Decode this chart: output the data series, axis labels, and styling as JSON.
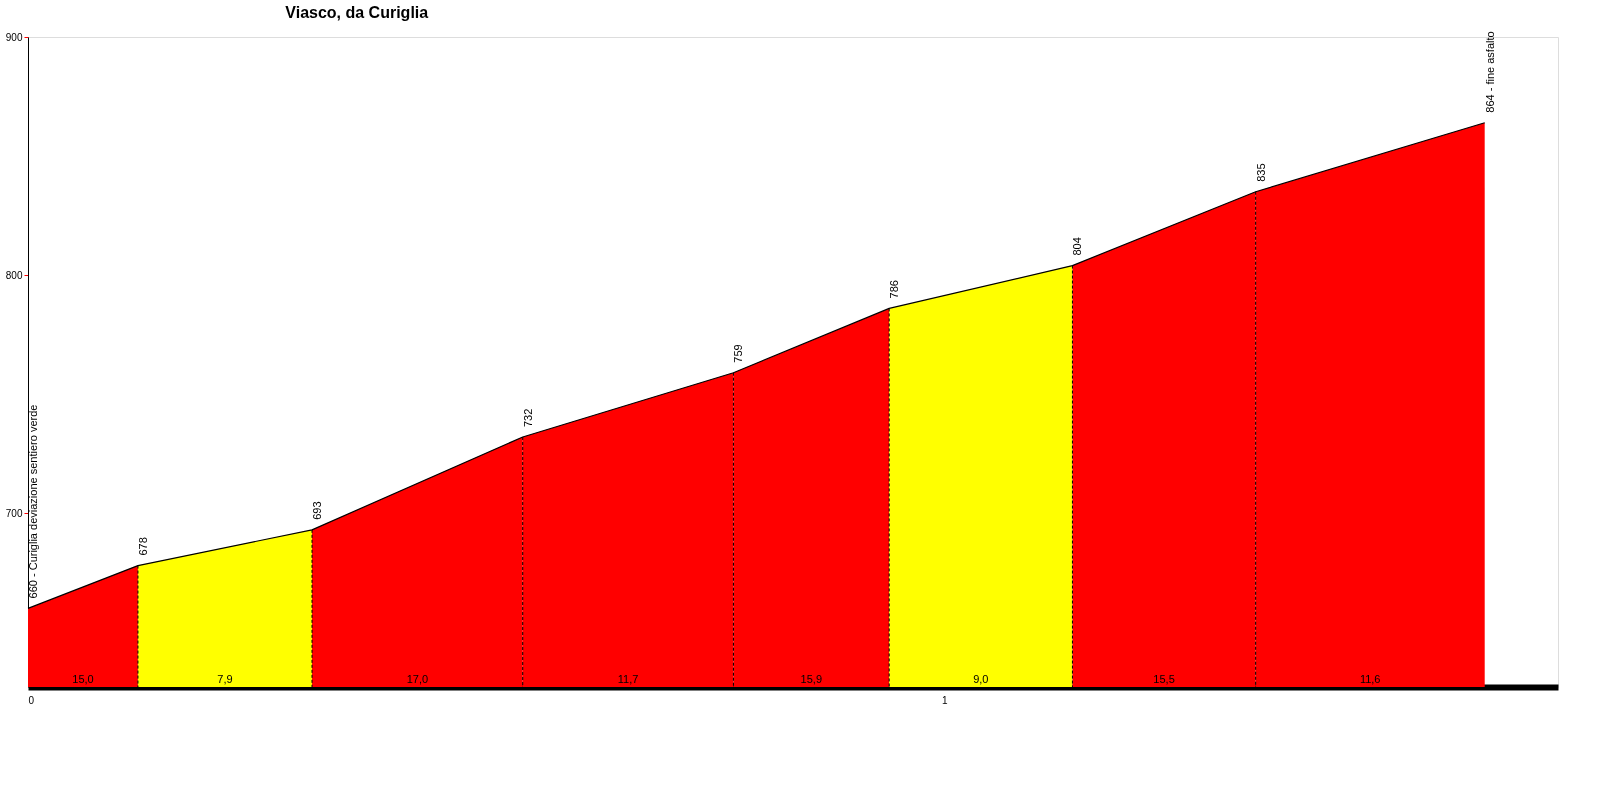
{
  "chart_data": {
    "type": "area",
    "title": "Viasco, da Curiglia",
    "xlim": [
      0,
      1.67
    ],
    "xticks": [
      0,
      1
    ],
    "ylim": [
      627,
      900
    ],
    "yticks": [
      700,
      800,
      900
    ],
    "grid": false,
    "series": [
      {
        "color": "#ff0000",
        "x": [
          0,
          0.12
        ],
        "values": [
          660,
          678
        ]
      },
      {
        "color": "#ffff00",
        "x": [
          0.12,
          0.31
        ],
        "values": [
          678,
          693
        ]
      },
      {
        "color": "#ff0000",
        "x": [
          0.31,
          0.54
        ],
        "values": [
          693,
          732
        ]
      },
      {
        "color": "#ff0000",
        "x": [
          0.54,
          0.77
        ],
        "values": [
          732,
          759
        ]
      },
      {
        "color": "#ff0000",
        "x": [
          0.77,
          0.94
        ],
        "values": [
          759,
          786
        ]
      },
      {
        "color": "#ffff00",
        "x": [
          0.94,
          1.14
        ],
        "values": [
          786,
          804
        ]
      },
      {
        "color": "#ff0000",
        "x": [
          1.14,
          1.34
        ],
        "values": [
          804,
          835
        ]
      },
      {
        "color": "#ff0000",
        "x": [
          1.34,
          1.59
        ],
        "values": [
          835,
          864
        ]
      },
      {
        "type": "line",
        "color": "#000000",
        "marker": "none",
        "line_style": "solid",
        "x": [
          0,
          0.12,
          0.31,
          0.54,
          0.77,
          0.94,
          1.14,
          1.34,
          1.59
        ],
        "values": [
          660,
          678,
          693,
          732,
          759,
          786,
          804,
          835,
          864
        ],
        "value_labels": [
          "660 - Curiglia deviazione sentiero verde",
          "678",
          "693",
          "732",
          "759",
          "786",
          "804",
          "835",
          "864 - fine asfalto"
        ]
      }
    ],
    "annotations": [
      "15,0",
      "7,9",
      "17,0",
      "11,7",
      "15,9",
      "9,0",
      "15,5",
      "11,6"
    ]
  }
}
